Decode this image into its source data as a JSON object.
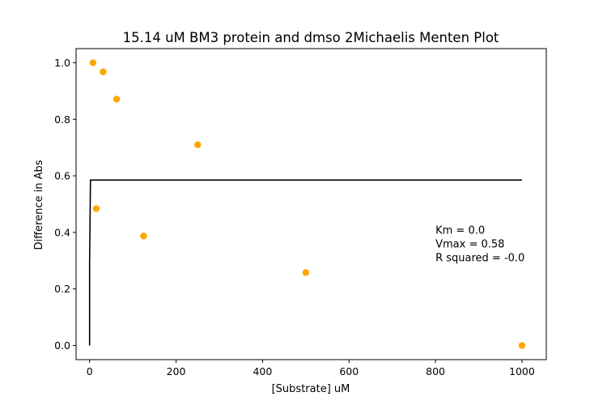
{
  "chart_data": {
    "type": "scatter",
    "title": "15.14 uM BM3 protein and dmso 2Michaelis Menten Plot",
    "xlabel": "[Substrate] uM",
    "ylabel": "Difference in Abs",
    "xlim": [
      -31.25,
      1056.25
    ],
    "ylim": [
      -0.05,
      1.05
    ],
    "xticks": [
      0,
      200,
      400,
      600,
      800,
      1000
    ],
    "yticks": [
      0.0,
      0.2,
      0.4,
      0.6,
      0.8,
      1.0
    ],
    "xtick_labels": [
      "0",
      "200",
      "400",
      "600",
      "800",
      "1000"
    ],
    "ytick_labels": [
      "0.0",
      "0.2",
      "0.4",
      "0.6",
      "0.8",
      "1.0"
    ],
    "series": [
      {
        "name": "data",
        "kind": "scatter",
        "color": "#FFA500",
        "x": [
          7.8125,
          15.625,
          31.25,
          62.5,
          125,
          250,
          500,
          1000
        ],
        "y": [
          1.0,
          0.484,
          0.968,
          0.871,
          0.387,
          0.71,
          0.258,
          0.0
        ]
      },
      {
        "name": "fit",
        "kind": "line",
        "color": "#000000",
        "x": [
          0,
          0.0001,
          2,
          1000
        ],
        "y": [
          0.0,
          0.29,
          0.585,
          0.585
        ]
      }
    ],
    "annotation": {
      "lines": [
        "Km = 0.0",
        "Vmax = 0.58",
        "R squared = -0.0"
      ],
      "x": 800,
      "y": 0.395
    }
  }
}
